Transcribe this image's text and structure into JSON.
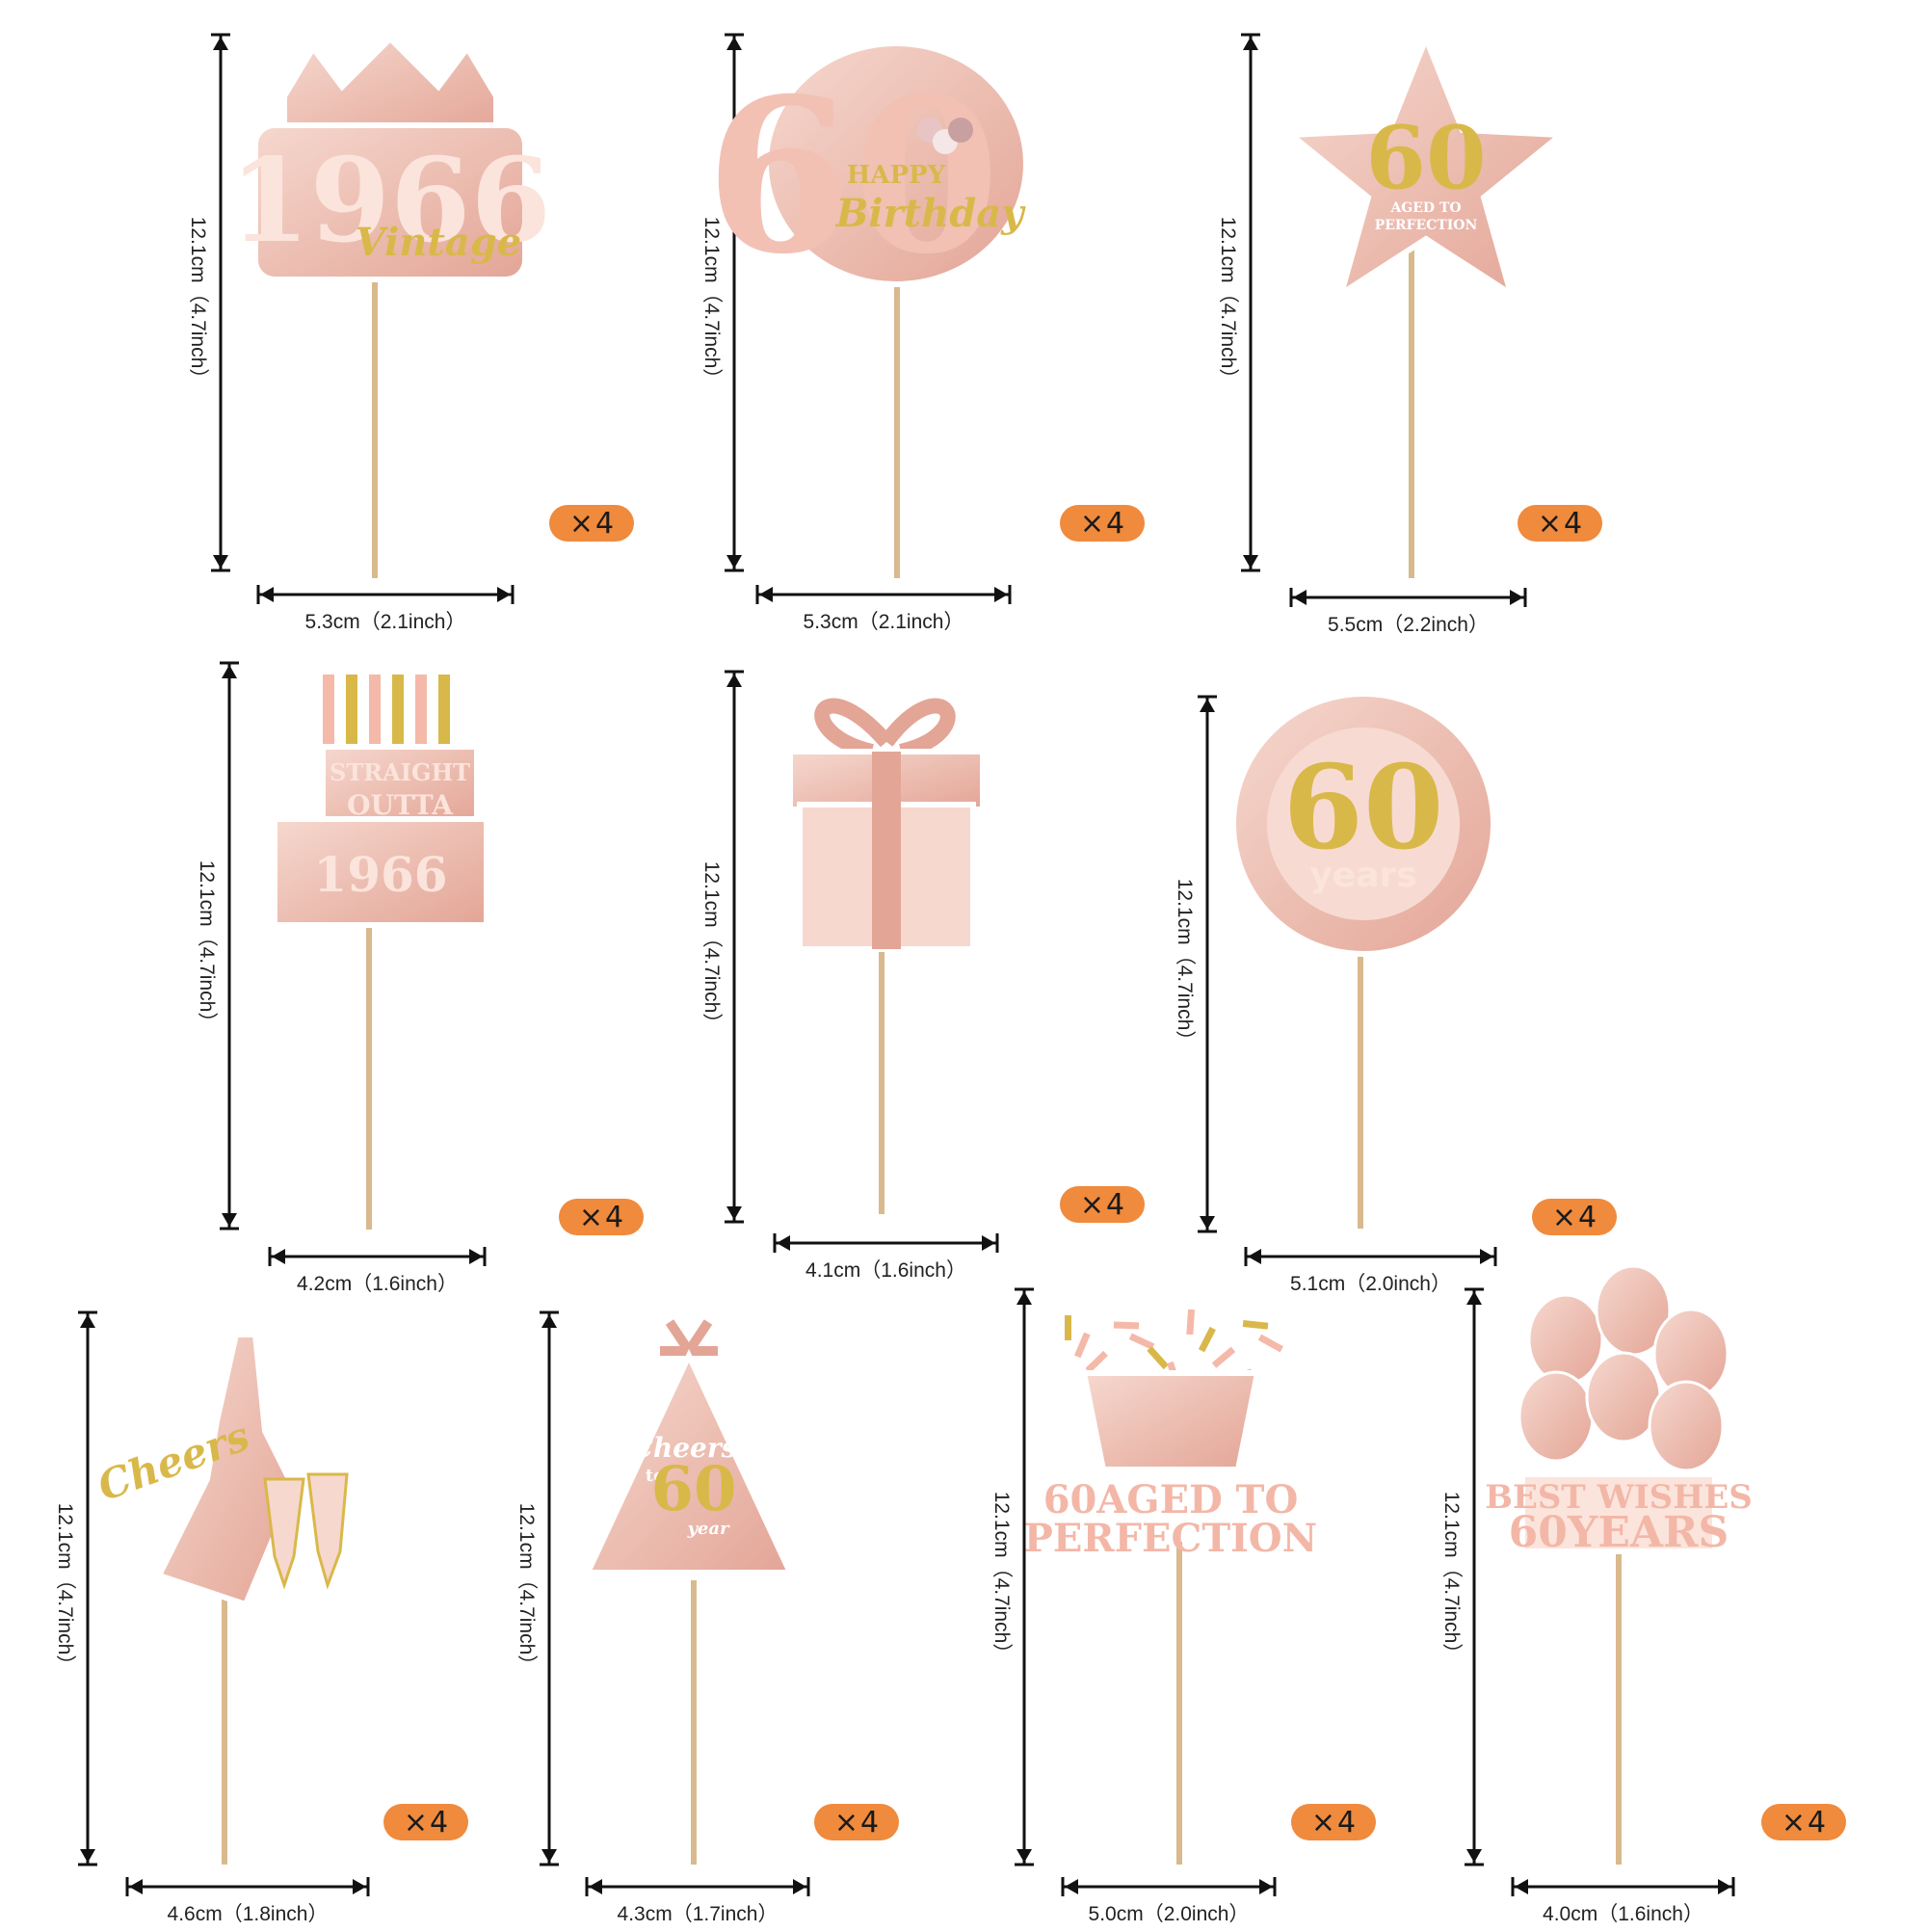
{
  "colors": {
    "rose": "#f0c4b8",
    "rose_glitter": "#e3a596",
    "gold": "#d9b84a",
    "stick": "#d9b98e",
    "badge": "#f08a3c",
    "arrow": "#111111"
  },
  "toppers": [
    {
      "name": "topper-1966-vintage",
      "design": "1966 Vintage",
      "lines": [
        "1966",
        "Vintage"
      ],
      "shape": "crown",
      "height": "12.1cm（4.7inch）",
      "width": "5.3cm（2.1inch）",
      "qty": "4"
    },
    {
      "name": "topper-60-happy-birthday",
      "design": "60 Happy Birthday",
      "lines": [
        "60",
        "HAPPY",
        "Birthday"
      ],
      "shape": "oval",
      "height": "12.1cm（4.7inch）",
      "width": "5.3cm（2.1inch）",
      "qty": "4"
    },
    {
      "name": "topper-star-aged-to-perfection",
      "design": "60 Aged to Perfection star",
      "lines": [
        "60",
        "AGED TO",
        "PERFECTION"
      ],
      "shape": "star",
      "height": "12.1cm（4.7inch）",
      "width": "5.5cm（2.2inch）",
      "qty": "4"
    },
    {
      "name": "topper-straight-outta-1966",
      "design": "Straight Outta 1966 cake",
      "lines": [
        "STRAIGHT",
        "OUTTA",
        "1966"
      ],
      "shape": "cake",
      "height": "12.1cm（4.7inch）",
      "width": "4.2cm（1.6inch）",
      "qty": "4"
    },
    {
      "name": "topper-gift-box",
      "design": "Gift box",
      "lines": [],
      "shape": "gift",
      "height": "12.1cm（4.7inch）",
      "width": "4.1cm（1.6inch）",
      "qty": "4"
    },
    {
      "name": "topper-60-years-wreath",
      "design": "60 years wreath",
      "lines": [
        "60",
        "years"
      ],
      "shape": "wreath",
      "height": "12.1cm（4.7inch）",
      "width": "5.1cm（2.0inch）",
      "qty": "4"
    },
    {
      "name": "topper-cheers-champagne",
      "design": "Cheers champagne",
      "lines": [
        "Cheers"
      ],
      "shape": "champagne",
      "height": "12.1cm（4.7inch）",
      "width": "4.6cm（1.8inch）",
      "qty": "4"
    },
    {
      "name": "topper-party-hat",
      "design": "Cheers to 60 years hat",
      "lines": [
        "Cheers",
        "to",
        "60",
        "year"
      ],
      "shape": "hat",
      "height": "12.1cm（4.7inch）",
      "width": "4.3cm（1.7inch）",
      "qty": "4"
    },
    {
      "name": "topper-60-aged-to-perfection",
      "design": "60 Aged to Perfection confetti",
      "lines": [
        "60AGED TO",
        "PERFECTION"
      ],
      "shape": "confetti",
      "height": "12.1cm（4.7inch）",
      "width": "5.0cm（2.0inch）",
      "qty": "4"
    },
    {
      "name": "topper-best-wishes-balloons",
      "design": "Best Wishes 60 Years balloons",
      "lines": [
        "BEST WISHES",
        "60YEARS"
      ],
      "shape": "balloons",
      "height": "12.1cm（4.7inch）",
      "width": "4.0cm（1.6inch）",
      "qty": "4"
    }
  ]
}
